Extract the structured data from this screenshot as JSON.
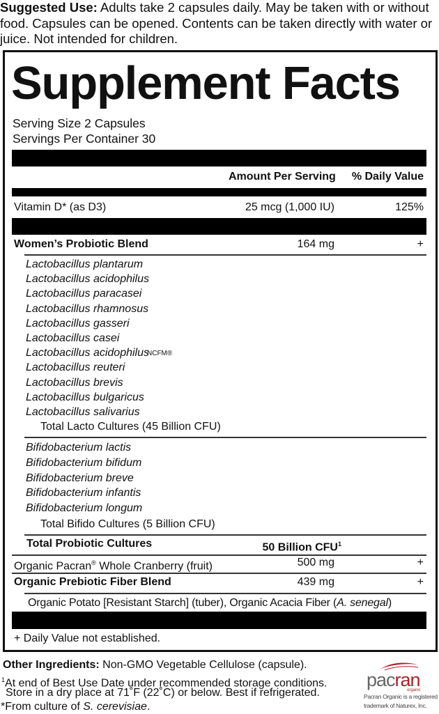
{
  "suggested_use": {
    "label": "Suggested Use:",
    "text": " Adults take 2 capsules daily. May be taken with or without food. Capsules can be opened. Contents can be taken directly with water or juice. Not intended for children."
  },
  "title": "Supplement Facts",
  "serving_size": "Serving Size 2 Capsules",
  "servings_per_container": "Servings Per Container 30",
  "headers": {
    "amount": "Amount Per Serving",
    "dv": "% Daily Value"
  },
  "vitamin_d": {
    "name": "Vitamin D* (as D3)",
    "amount": "25 mcg (1,000 IU)",
    "dv": "125%"
  },
  "womens_blend": {
    "name": "Women’s Probiotic Blend",
    "amount": "164 mg",
    "dv": "+"
  },
  "lacto": [
    "Lactobacillus plantarum",
    "Lactobacillus acidophilus",
    "Lactobacillus paracasei",
    "Lactobacillus rhamnosus",
    "Lactobacillus gasseri",
    "Lactobacillus casei",
    "Lactobacillus acidophilus",
    "Lactobacillus reuteri",
    "Lactobacillus brevis",
    "Lactobacillus bulgaricus",
    "Lactobacillus salivarius"
  ],
  "ncfm": "NCFM®",
  "total_lacto": "Total Lacto Cultures  (45 Billion CFU)",
  "bifido": [
    "Bifidobacterium lactis",
    "Bifidobacterium bifidum",
    "Bifidobacterium breve",
    "Bifidobacterium infantis",
    "Bifidobacterium longum"
  ],
  "total_bifido": "Total Bifido Cultures  (5 Billion CFU)",
  "total_probiotic": {
    "name": "Total Probiotic Cultures",
    "amount": "50 Billion CFU",
    "sup": "1"
  },
  "cranberry": {
    "name_a": "Organic Pacran",
    "reg": "®",
    "name_b": " Whole Cranberry (fruit)",
    "amount": "500 mg",
    "dv": "+"
  },
  "prebiotic": {
    "name": "Organic Prebiotic Fiber Blend",
    "amount": "439 mg",
    "dv": "+"
  },
  "prebiotic_detail": {
    "text": "Organic Potato [Resistant Starch] (tuber), Organic Acacia Fiber (",
    "italic": "A. senegal",
    "close": ")"
  },
  "dv_note": "+ Daily Value not established.",
  "other": {
    "label": "Other Ingredients:",
    "text": " Non-GMO Vegetable Cellulose (capsule)."
  },
  "footnote1": {
    "sup": "1",
    "line1": "At end of Best Use Date under recommended storage conditions.",
    "line2": "Store in a dry place at 71˚F (22˚C) or below. Best if refrigerated."
  },
  "footnote_star": {
    "text": "*From culture of ",
    "italic": "S. cerevisiae",
    "end": "."
  },
  "logo": {
    "text_a": "pac",
    "text_b": "ran",
    "sub": "organic",
    "note1": "Pacran Organic is a registered",
    "note2": "trademark of Naturex, Inc.",
    "color": "#b0202a"
  }
}
